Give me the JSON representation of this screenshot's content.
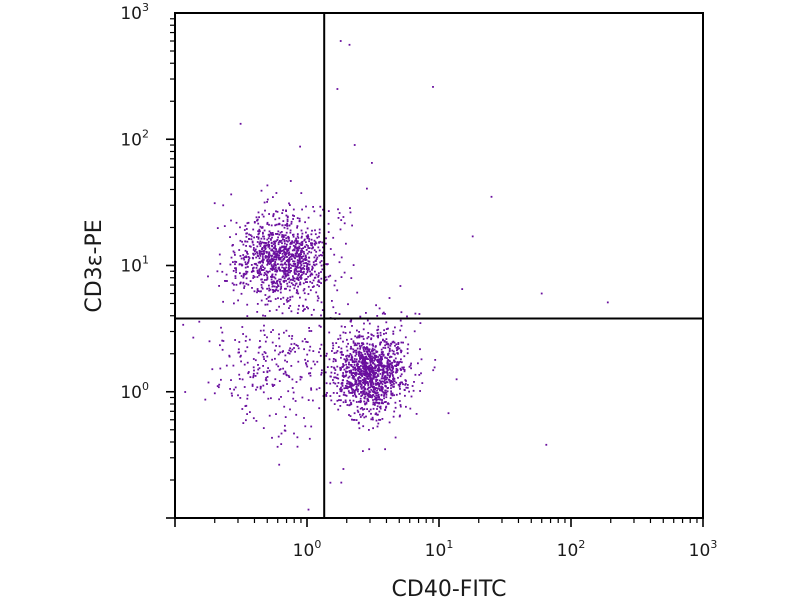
{
  "chart_data": {
    "type": "scatter",
    "xlabel": "CD40-FITC",
    "ylabel": "CD3ε-PE",
    "x_scale": "log",
    "y_scale": "log",
    "xlim": [
      0.1,
      1000
    ],
    "ylim": [
      0.1,
      1000
    ],
    "x_ticks": [
      {
        "base": "10",
        "exp": "0",
        "value": 1
      },
      {
        "base": "10",
        "exp": "1",
        "value": 10
      },
      {
        "base": "10",
        "exp": "2",
        "value": 100
      },
      {
        "base": "10",
        "exp": "3",
        "value": 1000
      }
    ],
    "y_ticks": [
      {
        "base": "10",
        "exp": "0",
        "value": 1
      },
      {
        "base": "10",
        "exp": "1",
        "value": 10
      },
      {
        "base": "10",
        "exp": "2",
        "value": 100
      },
      {
        "base": "10",
        "exp": "3",
        "value": 1000
      }
    ],
    "quadrant_gates": {
      "x": 1.35,
      "y": 3.8
    },
    "point_color": "#6a0f9e",
    "populations": [
      {
        "center": [
          0.65,
          11.5
        ],
        "count": 1150
      },
      {
        "center": [
          3.0,
          1.4
        ],
        "count": 1300
      },
      {
        "center": [
          0.55,
          1.5
        ],
        "count": 260
      }
    ],
    "outliers": [
      [
        1.8,
        600
      ],
      [
        2.1,
        560
      ],
      [
        9.0,
        260
      ],
      [
        2.3,
        90
      ],
      [
        3.1,
        65
      ],
      [
        25,
        35
      ],
      [
        18,
        17
      ],
      [
        60,
        6
      ],
      [
        190,
        5.1
      ],
      [
        65,
        0.38
      ],
      [
        1.7,
        250
      ],
      [
        15,
        6.5
      ]
    ],
    "grid": false
  }
}
